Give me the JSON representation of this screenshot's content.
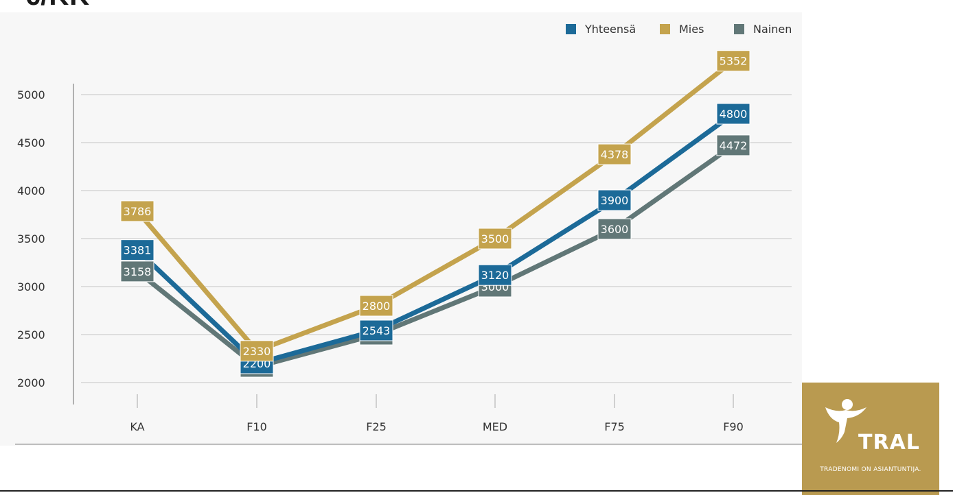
{
  "slide": {
    "title_fragment": "€/KK"
  },
  "logo": {
    "brand": "TRAL",
    "tagline": "TRADENOMI ON ASIANTUNTIJA."
  },
  "colors": {
    "yhteensa": "#1c6a98",
    "mies": "#c4a34d",
    "nainen": "#617777",
    "gridline": "#d0d0d0",
    "panel": "#f7f7f7"
  },
  "chart_data": {
    "type": "line",
    "title": "",
    "xlabel": "",
    "ylabel": "",
    "categories": [
      "KA",
      "F10",
      "F25",
      "MED",
      "F75",
      "F90"
    ],
    "ylim": [
      2000,
      5000
    ],
    "yticks": [
      2000,
      2500,
      3000,
      3500,
      4000,
      4500,
      5000
    ],
    "grid": true,
    "legend_position": "top-right",
    "series": [
      {
        "name": "Yhteensä",
        "color": "#1c6a98",
        "values": [
          3381,
          2200,
          2543,
          3120,
          3900,
          4800
        ]
      },
      {
        "name": "Mies",
        "color": "#c4a34d",
        "values": [
          3786,
          2330,
          2800,
          3500,
          4378,
          5352
        ]
      },
      {
        "name": "Nainen",
        "color": "#617777",
        "values": [
          3158,
          2164,
          2500,
          3000,
          3600,
          4472
        ]
      }
    ]
  }
}
